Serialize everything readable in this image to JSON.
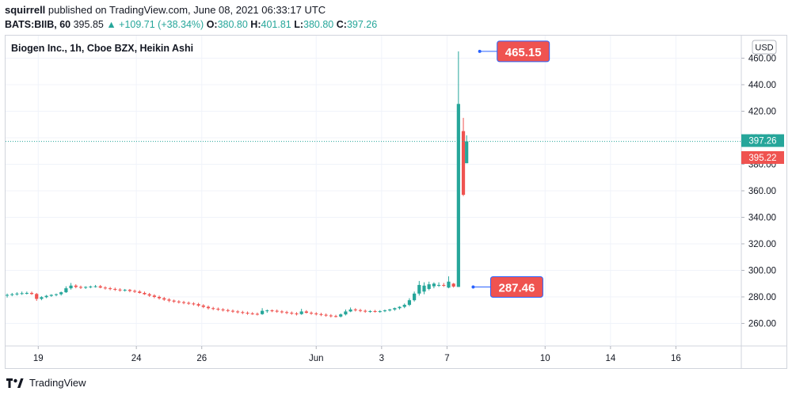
{
  "header": {
    "publisher": "squirrell",
    "published_text": "published on TradingView.com, June 08, 2021 06:33:17 UTC",
    "symbol": "BATS:BIIB, 60",
    "last": "395.85",
    "change": "▲ +109.71 (+38.34%)",
    "o_label": "O:",
    "o": "380.80",
    "h_label": "H:",
    "h": "401.81",
    "l_label": "L:",
    "l": "380.80",
    "c_label": "C:",
    "c": "397.26"
  },
  "footer": {
    "brand": "TradingView"
  },
  "chart_data": {
    "type": "candlestick",
    "title": "Biogen Inc., 1h, Cboe BZX, Heikin Ashi",
    "currency": "USD",
    "ylim": [
      243,
      477
    ],
    "y_ticks": [
      260,
      280,
      300,
      320,
      340,
      360,
      380,
      400,
      420,
      440,
      460
    ],
    "y_tick_labels": [
      "260.00",
      "280.00",
      "300.00",
      "320.00",
      "340.00",
      "360.00",
      "380.00",
      "400.00",
      "420.00",
      "440.00",
      "460.00"
    ],
    "x_ticks": [
      {
        "label": "19",
        "x": 0.5
      },
      {
        "label": "24",
        "x": 3.5
      },
      {
        "label": "26",
        "x": 5.5
      },
      {
        "label": "Jun",
        "x": 9.0
      },
      {
        "label": "3",
        "x": 11.0
      },
      {
        "label": "7",
        "x": 13.0
      },
      {
        "label": "10",
        "x": 16.0
      },
      {
        "label": "14",
        "x": 18.0
      },
      {
        "label": "16",
        "x": 20.0
      }
    ],
    "xlim": [
      -0.5,
      22.0
    ],
    "price_labels": [
      {
        "label": "397.26",
        "value": 397.26,
        "color": "#26a69a"
      },
      {
        "label": "395.22",
        "value": 395.22,
        "color": "#ef5350"
      }
    ],
    "annotations": [
      {
        "label": "465.15",
        "value": 465.15,
        "x": 14.0
      },
      {
        "label": "287.46",
        "value": 287.46,
        "x": 13.8
      }
    ],
    "current_price": 397.26,
    "up_color": "#26a69a",
    "down_color": "#ef5350",
    "series": {
      "name": "BIIB",
      "candles": [
        {
          "x": -0.45,
          "o": 281.0,
          "h": 282.5,
          "l": 279.5,
          "c": 281.5
        },
        {
          "x": -0.3,
          "o": 281.5,
          "h": 283.0,
          "l": 280.5,
          "c": 282.0
        },
        {
          "x": -0.15,
          "o": 282.0,
          "h": 283.5,
          "l": 281.0,
          "c": 282.5
        },
        {
          "x": 0.0,
          "o": 282.5,
          "h": 284.0,
          "l": 281.5,
          "c": 282.8
        },
        {
          "x": 0.15,
          "o": 282.8,
          "h": 284.0,
          "l": 281.8,
          "c": 283.0
        },
        {
          "x": 0.3,
          "o": 283.0,
          "h": 284.0,
          "l": 281.5,
          "c": 282.2
        },
        {
          "x": 0.45,
          "o": 282.2,
          "h": 283.0,
          "l": 277.0,
          "c": 278.5
        },
        {
          "x": 0.6,
          "o": 278.5,
          "h": 280.5,
          "l": 277.5,
          "c": 279.8
        },
        {
          "x": 0.75,
          "o": 279.8,
          "h": 281.5,
          "l": 279.0,
          "c": 280.8
        },
        {
          "x": 0.9,
          "o": 280.8,
          "h": 282.0,
          "l": 280.0,
          "c": 281.5
        },
        {
          "x": 1.05,
          "o": 281.5,
          "h": 282.5,
          "l": 280.5,
          "c": 282.0
        },
        {
          "x": 1.2,
          "o": 282.0,
          "h": 284.0,
          "l": 281.0,
          "c": 283.5
        },
        {
          "x": 1.35,
          "o": 283.5,
          "h": 288.0,
          "l": 283.0,
          "c": 286.5
        },
        {
          "x": 1.5,
          "o": 286.5,
          "h": 290.5,
          "l": 285.5,
          "c": 288.5
        },
        {
          "x": 1.65,
          "o": 288.5,
          "h": 289.5,
          "l": 286.5,
          "c": 287.5
        },
        {
          "x": 1.8,
          "o": 287.5,
          "h": 288.5,
          "l": 286.0,
          "c": 287.0
        },
        {
          "x": 1.95,
          "o": 287.0,
          "h": 288.0,
          "l": 286.0,
          "c": 287.5
        },
        {
          "x": 2.1,
          "o": 287.5,
          "h": 288.5,
          "l": 286.5,
          "c": 287.8
        },
        {
          "x": 2.25,
          "o": 287.8,
          "h": 289.0,
          "l": 287.0,
          "c": 288.0
        },
        {
          "x": 2.4,
          "o": 288.0,
          "h": 289.0,
          "l": 286.5,
          "c": 287.0
        },
        {
          "x": 2.55,
          "o": 287.0,
          "h": 288.0,
          "l": 285.5,
          "c": 286.5
        },
        {
          "x": 2.7,
          "o": 286.5,
          "h": 287.5,
          "l": 285.0,
          "c": 286.0
        },
        {
          "x": 2.85,
          "o": 286.0,
          "h": 287.0,
          "l": 284.5,
          "c": 285.5
        },
        {
          "x": 3.0,
          "o": 285.5,
          "h": 286.5,
          "l": 284.0,
          "c": 285.0
        },
        {
          "x": 3.15,
          "o": 285.0,
          "h": 286.0,
          "l": 284.0,
          "c": 285.3
        },
        {
          "x": 3.3,
          "o": 285.3,
          "h": 286.0,
          "l": 283.5,
          "c": 284.5
        },
        {
          "x": 3.45,
          "o": 284.5,
          "h": 285.5,
          "l": 283.0,
          "c": 284.0
        },
        {
          "x": 3.6,
          "o": 284.0,
          "h": 285.0,
          "l": 282.5,
          "c": 283.0
        },
        {
          "x": 3.75,
          "o": 283.0,
          "h": 284.0,
          "l": 281.5,
          "c": 282.0
        },
        {
          "x": 3.9,
          "o": 282.0,
          "h": 283.0,
          "l": 280.0,
          "c": 281.0
        },
        {
          "x": 4.05,
          "o": 281.0,
          "h": 282.0,
          "l": 279.0,
          "c": 280.0
        },
        {
          "x": 4.2,
          "o": 280.0,
          "h": 281.0,
          "l": 278.0,
          "c": 279.0
        },
        {
          "x": 4.35,
          "o": 279.0,
          "h": 280.0,
          "l": 277.0,
          "c": 278.0
        },
        {
          "x": 4.5,
          "o": 278.0,
          "h": 279.0,
          "l": 276.0,
          "c": 277.2
        },
        {
          "x": 4.65,
          "o": 277.2,
          "h": 278.0,
          "l": 275.5,
          "c": 276.5
        },
        {
          "x": 4.8,
          "o": 276.5,
          "h": 277.5,
          "l": 275.0,
          "c": 276.0
        },
        {
          "x": 4.95,
          "o": 276.0,
          "h": 277.0,
          "l": 274.5,
          "c": 275.5
        },
        {
          "x": 5.1,
          "o": 275.5,
          "h": 276.5,
          "l": 274.0,
          "c": 275.0
        },
        {
          "x": 5.25,
          "o": 275.0,
          "h": 276.0,
          "l": 273.5,
          "c": 274.5
        },
        {
          "x": 5.4,
          "o": 274.5,
          "h": 275.5,
          "l": 272.5,
          "c": 273.5
        },
        {
          "x": 5.55,
          "o": 273.5,
          "h": 274.5,
          "l": 271.5,
          "c": 272.5
        },
        {
          "x": 5.7,
          "o": 272.5,
          "h": 273.5,
          "l": 270.5,
          "c": 271.5
        },
        {
          "x": 5.85,
          "o": 271.5,
          "h": 272.5,
          "l": 270.0,
          "c": 271.0
        },
        {
          "x": 6.0,
          "o": 271.0,
          "h": 272.0,
          "l": 269.5,
          "c": 270.5
        },
        {
          "x": 6.15,
          "o": 270.5,
          "h": 271.5,
          "l": 269.0,
          "c": 270.0
        },
        {
          "x": 6.3,
          "o": 270.0,
          "h": 271.0,
          "l": 268.5,
          "c": 269.5
        },
        {
          "x": 6.45,
          "o": 269.5,
          "h": 270.5,
          "l": 268.0,
          "c": 269.0
        },
        {
          "x": 6.6,
          "o": 269.0,
          "h": 270.0,
          "l": 267.5,
          "c": 268.5
        },
        {
          "x": 6.75,
          "o": 268.5,
          "h": 269.5,
          "l": 267.0,
          "c": 268.0
        },
        {
          "x": 6.9,
          "o": 268.0,
          "h": 269.0,
          "l": 266.5,
          "c": 267.5
        },
        {
          "x": 7.05,
          "o": 267.5,
          "h": 268.5,
          "l": 266.5,
          "c": 267.2
        },
        {
          "x": 7.2,
          "o": 267.2,
          "h": 268.2,
          "l": 266.0,
          "c": 267.0
        },
        {
          "x": 7.35,
          "o": 267.0,
          "h": 271.5,
          "l": 266.5,
          "c": 269.5
        },
        {
          "x": 7.5,
          "o": 269.5,
          "h": 270.5,
          "l": 268.0,
          "c": 269.8
        },
        {
          "x": 7.65,
          "o": 269.8,
          "h": 270.5,
          "l": 268.5,
          "c": 269.5
        },
        {
          "x": 7.8,
          "o": 269.5,
          "h": 270.5,
          "l": 268.0,
          "c": 269.0
        },
        {
          "x": 7.95,
          "o": 269.0,
          "h": 270.0,
          "l": 267.5,
          "c": 268.5
        },
        {
          "x": 8.1,
          "o": 268.5,
          "h": 269.5,
          "l": 267.0,
          "c": 268.0
        },
        {
          "x": 8.25,
          "o": 268.0,
          "h": 269.0,
          "l": 266.5,
          "c": 267.5
        },
        {
          "x": 8.4,
          "o": 267.5,
          "h": 268.5,
          "l": 266.0,
          "c": 267.0
        },
        {
          "x": 8.55,
          "o": 267.0,
          "h": 271.0,
          "l": 266.5,
          "c": 269.0
        },
        {
          "x": 8.7,
          "o": 269.0,
          "h": 270.0,
          "l": 267.5,
          "c": 268.0
        },
        {
          "x": 8.85,
          "o": 268.0,
          "h": 269.0,
          "l": 266.5,
          "c": 267.5
        },
        {
          "x": 9.0,
          "o": 267.5,
          "h": 268.5,
          "l": 266.0,
          "c": 267.0
        },
        {
          "x": 9.15,
          "o": 267.0,
          "h": 268.0,
          "l": 265.5,
          "c": 266.5
        },
        {
          "x": 9.3,
          "o": 266.5,
          "h": 267.5,
          "l": 265.0,
          "c": 266.0
        },
        {
          "x": 9.45,
          "o": 266.0,
          "h": 267.0,
          "l": 264.5,
          "c": 265.5
        },
        {
          "x": 9.6,
          "o": 265.5,
          "h": 266.5,
          "l": 264.5,
          "c": 265.2
        },
        {
          "x": 9.75,
          "o": 265.2,
          "h": 267.5,
          "l": 264.5,
          "c": 266.8
        },
        {
          "x": 9.9,
          "o": 266.8,
          "h": 270.5,
          "l": 266.0,
          "c": 269.0
        },
        {
          "x": 10.05,
          "o": 269.0,
          "h": 272.0,
          "l": 268.5,
          "c": 270.5
        },
        {
          "x": 10.2,
          "o": 270.5,
          "h": 271.5,
          "l": 269.0,
          "c": 270.0
        },
        {
          "x": 10.35,
          "o": 270.0,
          "h": 271.0,
          "l": 268.5,
          "c": 269.5
        },
        {
          "x": 10.5,
          "o": 269.5,
          "h": 270.5,
          "l": 268.0,
          "c": 269.0
        },
        {
          "x": 10.65,
          "o": 269.0,
          "h": 270.0,
          "l": 268.0,
          "c": 269.3
        },
        {
          "x": 10.8,
          "o": 269.3,
          "h": 270.2,
          "l": 268.2,
          "c": 269.0
        },
        {
          "x": 10.95,
          "o": 269.0,
          "h": 270.0,
          "l": 268.0,
          "c": 269.2
        },
        {
          "x": 11.1,
          "o": 269.2,
          "h": 270.5,
          "l": 268.5,
          "c": 269.8
        },
        {
          "x": 11.25,
          "o": 269.8,
          "h": 271.0,
          "l": 269.0,
          "c": 270.5
        },
        {
          "x": 11.4,
          "o": 270.5,
          "h": 272.0,
          "l": 269.5,
          "c": 271.5
        },
        {
          "x": 11.55,
          "o": 271.5,
          "h": 273.0,
          "l": 270.5,
          "c": 272.5
        },
        {
          "x": 11.7,
          "o": 272.5,
          "h": 275.0,
          "l": 271.5,
          "c": 274.0
        },
        {
          "x": 11.85,
          "o": 274.0,
          "h": 279.0,
          "l": 273.0,
          "c": 277.5
        },
        {
          "x": 12.0,
          "o": 277.5,
          "h": 284.0,
          "l": 276.5,
          "c": 282.5
        },
        {
          "x": 12.15,
          "o": 282.5,
          "h": 292.0,
          "l": 281.0,
          "c": 289.0
        },
        {
          "x": 12.3,
          "o": 284.0,
          "h": 291.0,
          "l": 282.0,
          "c": 288.5
        },
        {
          "x": 12.45,
          "o": 286.0,
          "h": 291.5,
          "l": 285.0,
          "c": 289.5
        },
        {
          "x": 12.6,
          "o": 288.0,
          "h": 291.0,
          "l": 286.5,
          "c": 290.0
        },
        {
          "x": 12.75,
          "o": 289.0,
          "h": 291.0,
          "l": 287.5,
          "c": 289.0
        },
        {
          "x": 12.9,
          "o": 289.0,
          "h": 290.5,
          "l": 287.5,
          "c": 288.5
        },
        {
          "x": 13.05,
          "o": 287.0,
          "h": 295.5,
          "l": 286.5,
          "c": 291.5
        },
        {
          "x": 13.2,
          "o": 290.0,
          "h": 290.5,
          "l": 287.0,
          "c": 287.8
        },
        {
          "x": 13.35,
          "o": 287.5,
          "h": 465.15,
          "l": 287.46,
          "c": 425.5
        },
        {
          "x": 13.5,
          "o": 405.0,
          "h": 415.0,
          "l": 356.0,
          "c": 357.0
        },
        {
          "x": 13.6,
          "o": 380.8,
          "h": 401.81,
          "l": 380.8,
          "c": 397.26
        }
      ]
    }
  }
}
